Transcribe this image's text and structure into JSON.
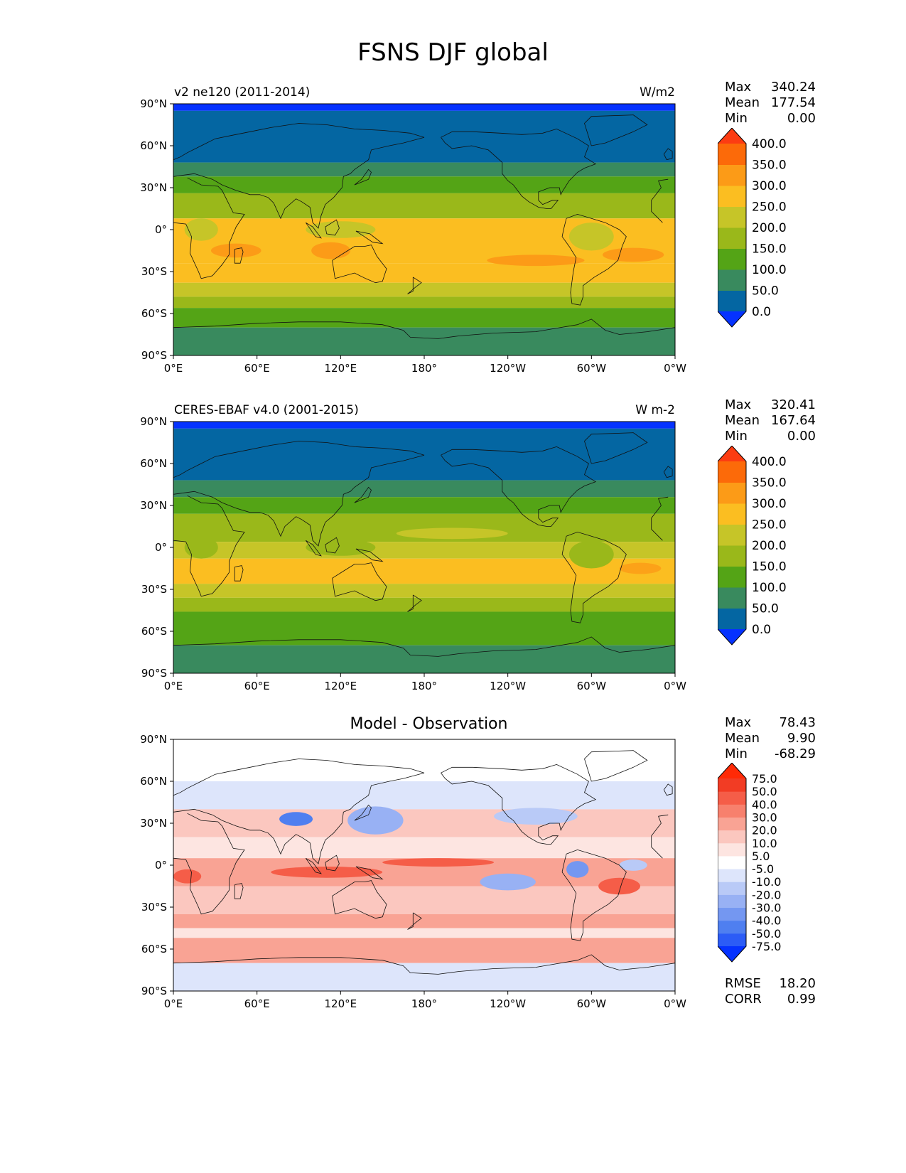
{
  "figure_title": "FSNS DJF global",
  "panels": [
    {
      "name": "v2 ne120 (2011-2014)",
      "units": "W/m2",
      "stats": {
        "max_label": "Max",
        "max": "340.24",
        "mean_label": "Mean",
        "mean": "177.54",
        "min_label": "Min",
        "min": "0.00"
      }
    },
    {
      "name": "CERES-EBAF v4.0 (2001-2015)",
      "units": "W m-2",
      "stats": {
        "max_label": "Max",
        "max": "320.41",
        "mean_label": "Mean",
        "mean": "167.64",
        "min_label": "Min",
        "min": "0.00"
      }
    },
    {
      "name": "Model - Observation",
      "units": "",
      "stats": {
        "max_label": "Max",
        "max": "78.43",
        "mean_label": "Mean",
        "mean": "9.90",
        "min_label": "Min",
        "min": "-68.29"
      },
      "extra": {
        "rmse_label": "RMSE",
        "rmse": "18.20",
        "corr_label": "CORR",
        "corr": "0.99"
      }
    }
  ],
  "chart_data": [
    {
      "type": "heatmap",
      "title": "v2 ne120 (2011-2014)",
      "units": "W/m2",
      "x_ticks": [
        "0°E",
        "60°E",
        "120°E",
        "180°",
        "120°W",
        "60°W",
        "0°W"
      ],
      "y_ticks": [
        "90°N",
        "60°N",
        "30°N",
        "0°",
        "30°S",
        "60°S",
        "90°S"
      ],
      "xlim": [
        0,
        360
      ],
      "ylim": [
        -90,
        90
      ],
      "levels": [
        "0.0",
        "50.0",
        "100.0",
        "150.0",
        "200.0",
        "250.0",
        "300.0",
        "350.0",
        "400.0"
      ],
      "colors": [
        "#0532ff",
        "#0466a2",
        "#398a5e",
        "#54a416",
        "#9ab81a",
        "#c6c528",
        "#fbbe21",
        "#fc9b17",
        "#fc6a09",
        "#fc3c12"
      ]
    },
    {
      "type": "heatmap",
      "title": "CERES-EBAF v4.0 (2001-2015)",
      "units": "W m-2",
      "x_ticks": [
        "0°E",
        "60°E",
        "120°E",
        "180°",
        "120°W",
        "60°W",
        "0°W"
      ],
      "y_ticks": [
        "90°N",
        "60°N",
        "30°N",
        "0°",
        "30°S",
        "60°S",
        "90°S"
      ],
      "xlim": [
        0,
        360
      ],
      "ylim": [
        -90,
        90
      ],
      "levels": [
        "0.0",
        "50.0",
        "100.0",
        "150.0",
        "200.0",
        "250.0",
        "300.0",
        "350.0",
        "400.0"
      ],
      "colors": [
        "#0532ff",
        "#0466a2",
        "#398a5e",
        "#54a416",
        "#9ab81a",
        "#c6c528",
        "#fbbe21",
        "#fc9b17",
        "#fc6a09",
        "#fc3c12"
      ]
    },
    {
      "type": "heatmap",
      "title": "Model - Observation",
      "x_ticks": [
        "0°E",
        "60°E",
        "120°E",
        "180°",
        "120°W",
        "60°W",
        "0°W"
      ],
      "y_ticks": [
        "90°N",
        "60°N",
        "30°N",
        "0°",
        "30°S",
        "60°S",
        "90°S"
      ],
      "xlim": [
        0,
        360
      ],
      "ylim": [
        -90,
        90
      ],
      "levels": [
        "-75.0",
        "-50.0",
        "-40.0",
        "-30.0",
        "-20.0",
        "-10.0",
        "-5.0",
        "5.0",
        "10.0",
        "20.0",
        "30.0",
        "40.0",
        "50.0",
        "75.0"
      ],
      "colors": [
        "#0532ff",
        "#2c5cf6",
        "#4f7ff0",
        "#7497f1",
        "#98b1f4",
        "#b9caf7",
        "#dde5fb",
        "#ffffff",
        "#fde5e1",
        "#fbc7bf",
        "#f9a394",
        "#f7806d",
        "#f55d48",
        "#f23c24",
        "#ff2a06"
      ]
    }
  ]
}
